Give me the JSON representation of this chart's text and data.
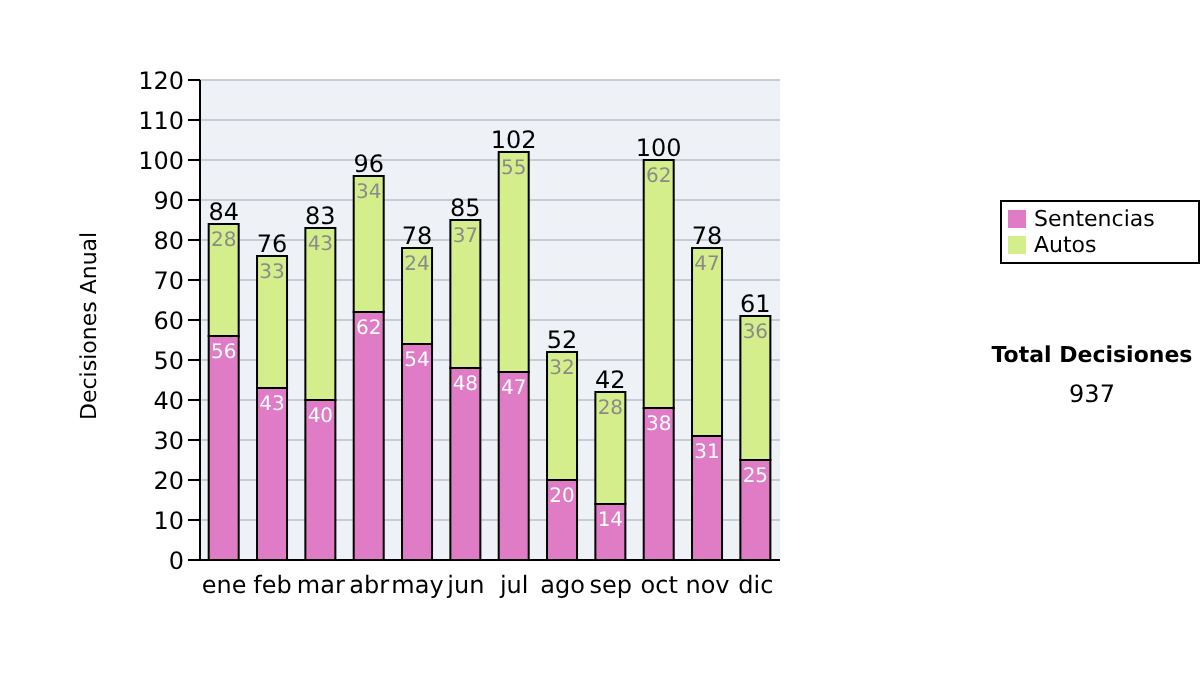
{
  "chart_data": {
    "type": "bar",
    "stacked": true,
    "ylabel": "Decisiones Anual",
    "categories": [
      "ene",
      "feb",
      "mar",
      "abr",
      "may",
      "jun",
      "jul",
      "ago",
      "sep",
      "oct",
      "nov",
      "dic"
    ],
    "series": [
      {
        "name": "Sentencias",
        "color": "#e07bc6",
        "values": [
          56,
          43,
          40,
          62,
          54,
          48,
          47,
          20,
          14,
          38,
          31,
          25
        ]
      },
      {
        "name": "Autos",
        "color": "#d5ee8c",
        "values": [
          28,
          33,
          43,
          34,
          24,
          37,
          55,
          32,
          28,
          62,
          47,
          36
        ]
      }
    ],
    "ylim": [
      0,
      120
    ],
    "yticks": [
      0,
      10,
      20,
      30,
      40,
      50,
      60,
      70,
      80,
      90,
      100,
      110,
      120
    ],
    "grid": "y",
    "legend": "right",
    "data_labels": true,
    "totals": [
      "84",
      "76",
      "83",
      "96",
      "78",
      "85",
      "102",
      "52",
      "42",
      "100",
      "78",
      "61"
    ],
    "annotations": [
      "Total Decisiones",
      "937"
    ]
  }
}
